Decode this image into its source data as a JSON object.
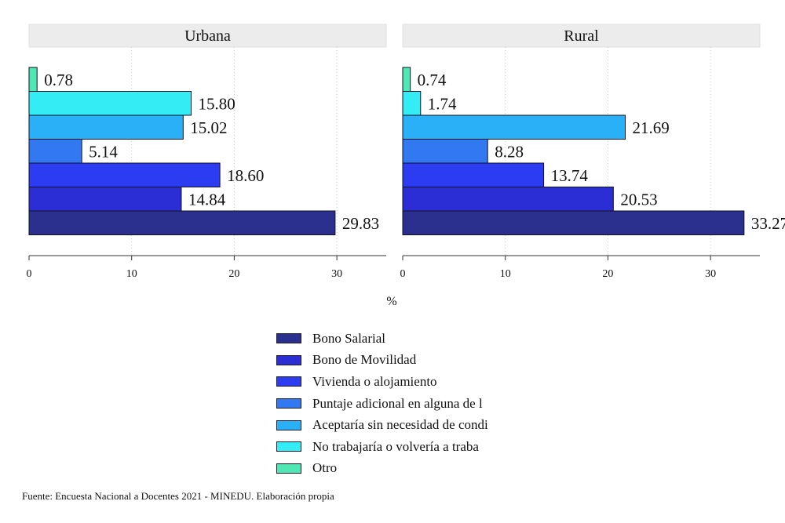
{
  "chart_data": {
    "type": "bar",
    "orientation": "horizontal",
    "xlabel": "%",
    "xlim": [
      0,
      35
    ],
    "xticks": [
      0,
      10,
      20,
      30
    ],
    "grid": "vertical dotted",
    "legend_position": "bottom",
    "categories": [
      "Otro",
      "No trabajaría o volvería a traba",
      "Aceptaría sin necesidad de condi",
      "Puntaje adicional en alguna de l",
      "Vivienda o alojamiento",
      "Bono de Movilidad",
      "Bono Salarial"
    ],
    "colors": [
      "#4fe8b4",
      "#33ecf4",
      "#2ab0f6",
      "#3278f0",
      "#2c3cf0",
      "#2a2ed4",
      "#2b2f8e"
    ],
    "panels": [
      {
        "title": "Urbana",
        "values": [
          0.78,
          15.8,
          15.02,
          5.14,
          18.6,
          14.84,
          29.83
        ],
        "labels": [
          "0.78",
          "15.80",
          "15.02",
          "5.14",
          "18.60",
          "14.84",
          "29.83"
        ]
      },
      {
        "title": "Rural",
        "values": [
          0.74,
          1.74,
          21.69,
          8.28,
          13.74,
          20.53,
          33.27
        ],
        "labels": [
          "0.74",
          "1.74",
          "21.69",
          "8.28",
          "13.74",
          "20.53",
          "33.27"
        ]
      }
    ]
  },
  "legend": [
    {
      "label": "Bono Salarial",
      "color": "#2b2f8e"
    },
    {
      "label": "Bono de Movilidad",
      "color": "#2a2ed4"
    },
    {
      "label": "Vivienda o alojamiento",
      "color": "#2c3cf0"
    },
    {
      "label": "Puntaje adicional en alguna de l",
      "color": "#3278f0"
    },
    {
      "label": "Aceptaría sin necesidad de condi",
      "color": "#2ab0f6"
    },
    {
      "label": "No trabajaría o volvería a traba",
      "color": "#33ecf4"
    },
    {
      "label": "Otro",
      "color": "#4fe8b4"
    }
  ],
  "source": "Fuente: Encuesta Nacional a Docentes 2021 - MINEDU. Elaboración propia"
}
